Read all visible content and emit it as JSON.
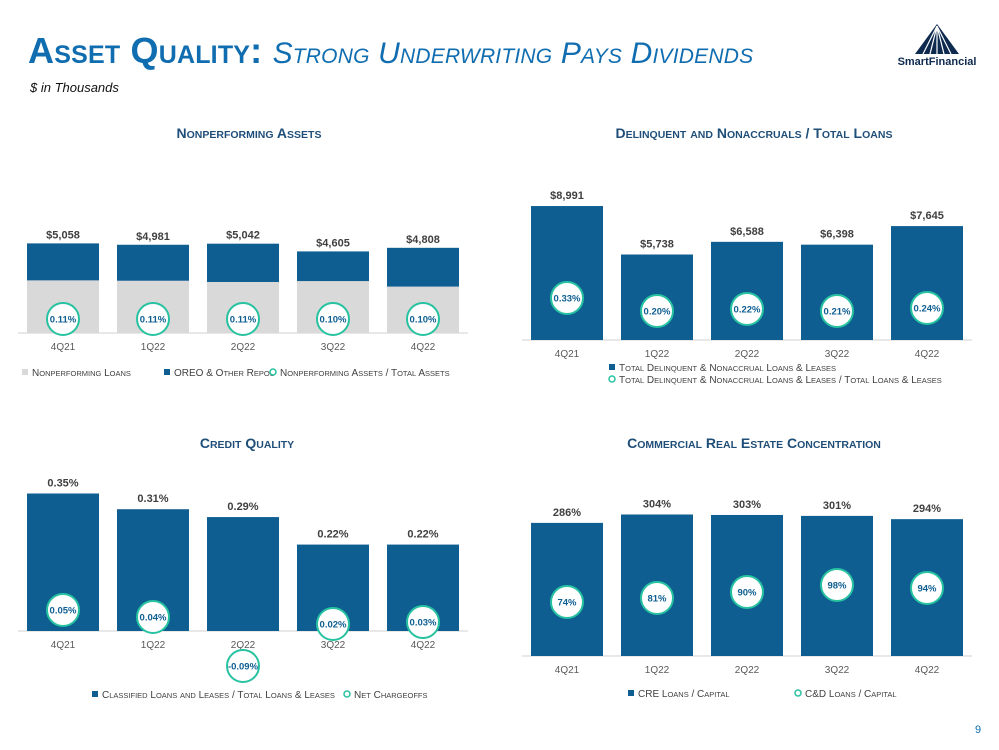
{
  "page": {
    "title_main": "Asset Quality:",
    "title_sub": "Strong Underwriting Pays Dividends",
    "subtitle": "$ in Thousands",
    "logo_text": "SmartFinancial",
    "page_number": "9"
  },
  "colors": {
    "navy": "#0e5e92",
    "gray": "#d9d9d9",
    "teal": "#27c2a0",
    "title": "#0f6db0",
    "label": "#404040"
  },
  "chart_data": [
    {
      "id": "npa",
      "type": "bar",
      "title": "Nonperforming Assets",
      "categories": [
        "4Q21",
        "1Q22",
        "2Q22",
        "3Q22",
        "4Q22"
      ],
      "series": [
        {
          "name": "Nonperforming Loans",
          "values": [
            2970,
            2950,
            2880,
            2930,
            2620
          ]
        },
        {
          "name": "OREO & Other Repos",
          "values": [
            2088,
            2031,
            2162,
            1675,
            2188
          ]
        }
      ],
      "totals": [
        "$5,058",
        "$4,981",
        "$5,042",
        "$4,605",
        "$4,808"
      ],
      "circle_series": {
        "name": "Nonperforming Assets / Total Assets",
        "labels": [
          "0.11%",
          "0.11%",
          "0.11%",
          "0.10%",
          "0.10%"
        ]
      },
      "legend": [
        "Nonperforming Loans",
        "OREO & Other Repos",
        "Nonperforming Assets / Total Assets"
      ],
      "ylim": [
        0,
        6000
      ]
    },
    {
      "id": "delinq",
      "type": "bar",
      "title": "Delinquent and Nonaccruals / Total Loans",
      "categories": [
        "4Q21",
        "1Q22",
        "2Q22",
        "3Q22",
        "4Q22"
      ],
      "values": [
        8991,
        5738,
        6588,
        6398,
        7645
      ],
      "value_labels": [
        "$8,991",
        "$5,738",
        "$6,588",
        "$6,398",
        "$7,645"
      ],
      "circle_series": {
        "name": "Total Delinquent & Nonaccrual Loans & Leases / Total Loans & Leases",
        "labels": [
          "0.33%",
          "0.20%",
          "0.22%",
          "0.21%",
          "0.24%"
        ]
      },
      "legend": [
        "Total Delinquent & Nonaccrual Loans & Leases",
        "Total Delinquent & Nonaccrual Loans & Leases / Total Loans & Leases"
      ],
      "ylim": [
        0,
        10000
      ]
    },
    {
      "id": "credit",
      "type": "bar",
      "title": "Credit Quality",
      "categories": [
        "4Q21",
        "1Q22",
        "2Q22",
        "3Q22",
        "4Q22"
      ],
      "values": [
        0.35,
        0.31,
        0.29,
        0.22,
        0.22
      ],
      "value_labels": [
        "0.35%",
        "0.31%",
        "0.29%",
        "0.22%",
        "0.22%"
      ],
      "circle_series": {
        "name": "Net Chargeoffs",
        "labels": [
          "0.05%",
          "0.04%",
          "-0.09%",
          "0.02%",
          "0.03%"
        ]
      },
      "legend": [
        "Classified Loans and Leases / Total Loans & Leases",
        "Net Chargeoffs"
      ],
      "ylim": [
        0,
        0.35
      ]
    },
    {
      "id": "cre",
      "type": "bar",
      "title": "Commercial Real Estate Concentration",
      "categories": [
        "4Q21",
        "1Q22",
        "2Q22",
        "3Q22",
        "4Q22"
      ],
      "values": [
        286,
        304,
        303,
        301,
        294
      ],
      "value_labels": [
        "286%",
        "304%",
        "303%",
        "301%",
        "294%"
      ],
      "circle_series": {
        "name": "C&D Loans / Capital",
        "labels": [
          "74%",
          "81%",
          "90%",
          "98%",
          "94%"
        ]
      },
      "legend": [
        "CRE Loans / Capital",
        "C&D Loans / Capital"
      ],
      "ylim": [
        0,
        304
      ]
    }
  ]
}
